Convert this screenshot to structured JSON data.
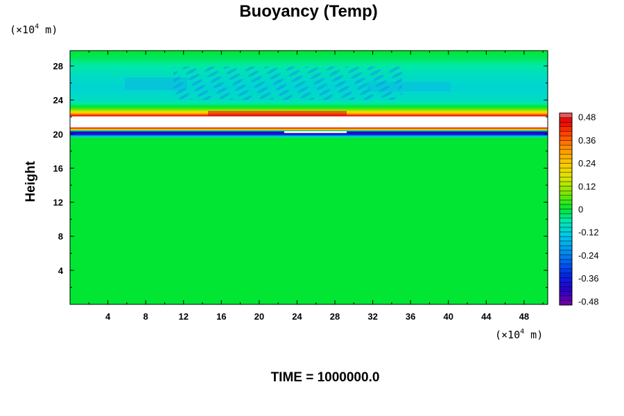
{
  "chart_data": {
    "type": "heatmap",
    "title": "Buoyancy (Temp)",
    "xlabel": "",
    "ylabel": "Height",
    "x_units": {
      "prefix": "(×10",
      "exp": "4",
      "suffix": " m)"
    },
    "y_units": {
      "prefix": "(×10",
      "exp": "4",
      "suffix": " m)"
    },
    "xlim": [
      0,
      50.5
    ],
    "ylim": [
      0,
      29.8
    ],
    "x_ticks": [
      4,
      8,
      12,
      16,
      20,
      24,
      28,
      32,
      36,
      40,
      44,
      48
    ],
    "y_ticks": [
      4,
      8,
      12,
      16,
      20,
      24,
      28
    ],
    "colorbar": {
      "min": -0.5,
      "max": 0.5,
      "labels": [
        "0.48",
        "0.36",
        "0.24",
        "0.12",
        "0",
        "-0.12",
        "-0.24",
        "-0.36",
        "-0.48"
      ],
      "label_values": [
        0.48,
        0.36,
        0.24,
        0.12,
        0,
        -0.12,
        -0.24,
        -0.36,
        -0.48
      ]
    },
    "field_profile": [
      {
        "height": 0.0,
        "value": 0.0
      },
      {
        "height": 19.6,
        "value": 0.0
      },
      {
        "height": 19.9,
        "value": -0.28
      },
      {
        "height": 20.1,
        "value": -0.46
      },
      {
        "height": 20.3,
        "value": -0.36
      },
      {
        "height": 20.5,
        "value": 0.14
      },
      {
        "height": 20.7,
        "value": 0.4
      },
      {
        "height": 21.0,
        "value": 0.62
      },
      {
        "height": 21.9,
        "value": 0.62
      },
      {
        "height": 22.2,
        "value": 0.44
      },
      {
        "height": 22.5,
        "value": 0.24
      },
      {
        "height": 22.9,
        "value": 0.07
      },
      {
        "height": 23.4,
        "value": -0.03
      },
      {
        "height": 24.0,
        "value": -0.09
      },
      {
        "height": 25.5,
        "value": -0.11
      },
      {
        "height": 26.8,
        "value": -0.09
      },
      {
        "height": 28.0,
        "value": -0.06
      },
      {
        "height": 29.0,
        "value": -0.02
      },
      {
        "height": 29.8,
        "value": 0.0
      }
    ]
  },
  "footer": {
    "time_label": "TIME = 1000000.0"
  }
}
